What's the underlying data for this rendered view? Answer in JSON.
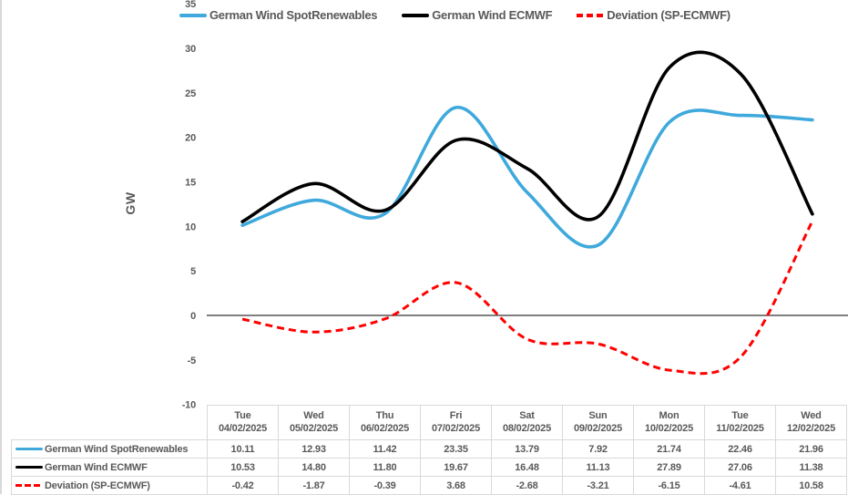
{
  "chart_data": {
    "type": "line",
    "title": "",
    "ylabel": "GW",
    "ylim": [
      -10,
      35
    ],
    "yticks": [
      35,
      30,
      25,
      20,
      15,
      10,
      5,
      0,
      -5,
      -10
    ],
    "grid": false,
    "legend_position": "top",
    "line_style_note": "smoothed spline lines, zero baseline drawn in black",
    "categories": [
      {
        "day": "Tue",
        "date": "04/02/2025"
      },
      {
        "day": "Wed",
        "date": "05/02/2025"
      },
      {
        "day": "Thu",
        "date": "06/02/2025"
      },
      {
        "day": "Fri",
        "date": "07/02/2025"
      },
      {
        "day": "Sat",
        "date": "08/02/2025"
      },
      {
        "day": "Sun",
        "date": "09/02/2025"
      },
      {
        "day": "Mon",
        "date": "10/02/2025"
      },
      {
        "day": "Tue",
        "date": "11/02/2025"
      },
      {
        "day": "Wed",
        "date": "12/02/2025"
      }
    ],
    "series": [
      {
        "name": "German Wind SpotRenewables",
        "color": "#3FA9DC",
        "dash": "solid",
        "values": [
          "10.11",
          "12.93",
          "11.42",
          "23.35",
          "13.79",
          "7.92",
          "21.74",
          "22.46",
          "21.96"
        ]
      },
      {
        "name": "German Wind ECMWF",
        "color": "#000000",
        "dash": "solid",
        "values": [
          "10.53",
          "14.80",
          "11.80",
          "19.67",
          "16.48",
          "11.13",
          "27.89",
          "27.06",
          "11.38"
        ]
      },
      {
        "name": "Deviation (SP-ECMWF)",
        "color": "#FF0000",
        "dash": "dashed",
        "values": [
          "-0.42",
          "-1.87",
          "-0.39",
          "3.68",
          "-2.68",
          "-3.21",
          "-6.15",
          "-4.61",
          "10.58"
        ]
      }
    ]
  }
}
